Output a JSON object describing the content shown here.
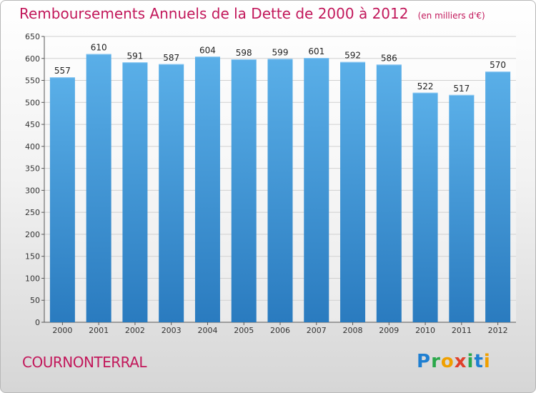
{
  "chart_data": {
    "type": "bar",
    "title": "Remboursements Annuels de la Dette de 2000 à 2012",
    "subtitle": "(en milliers d'€)",
    "categories": [
      "2000",
      "2001",
      "2002",
      "2003",
      "2004",
      "2005",
      "2006",
      "2007",
      "2008",
      "2009",
      "2010",
      "2011",
      "2012"
    ],
    "values": [
      557,
      610,
      591,
      587,
      604,
      598,
      599,
      601,
      592,
      586,
      522,
      517,
      570
    ],
    "ylim": [
      0,
      650
    ],
    "yticks": [
      0,
      50,
      100,
      150,
      200,
      250,
      300,
      350,
      400,
      450,
      500,
      550,
      600,
      650
    ],
    "grid": true,
    "colors": {
      "bar_top": "#5aafe8",
      "bar_bottom": "#2a7bbf",
      "grid": "#d0d0d0"
    }
  },
  "footer": {
    "city": "COURNONTERRAL",
    "logo": [
      "P",
      "r",
      "o",
      "x",
      "i",
      "t",
      "i"
    ],
    "logo_colors": [
      "#1f7fd1",
      "#2aa84a",
      "#f0a000",
      "#e0402a",
      "#2aa84a",
      "#1f7fd1",
      "#f0a000"
    ]
  }
}
